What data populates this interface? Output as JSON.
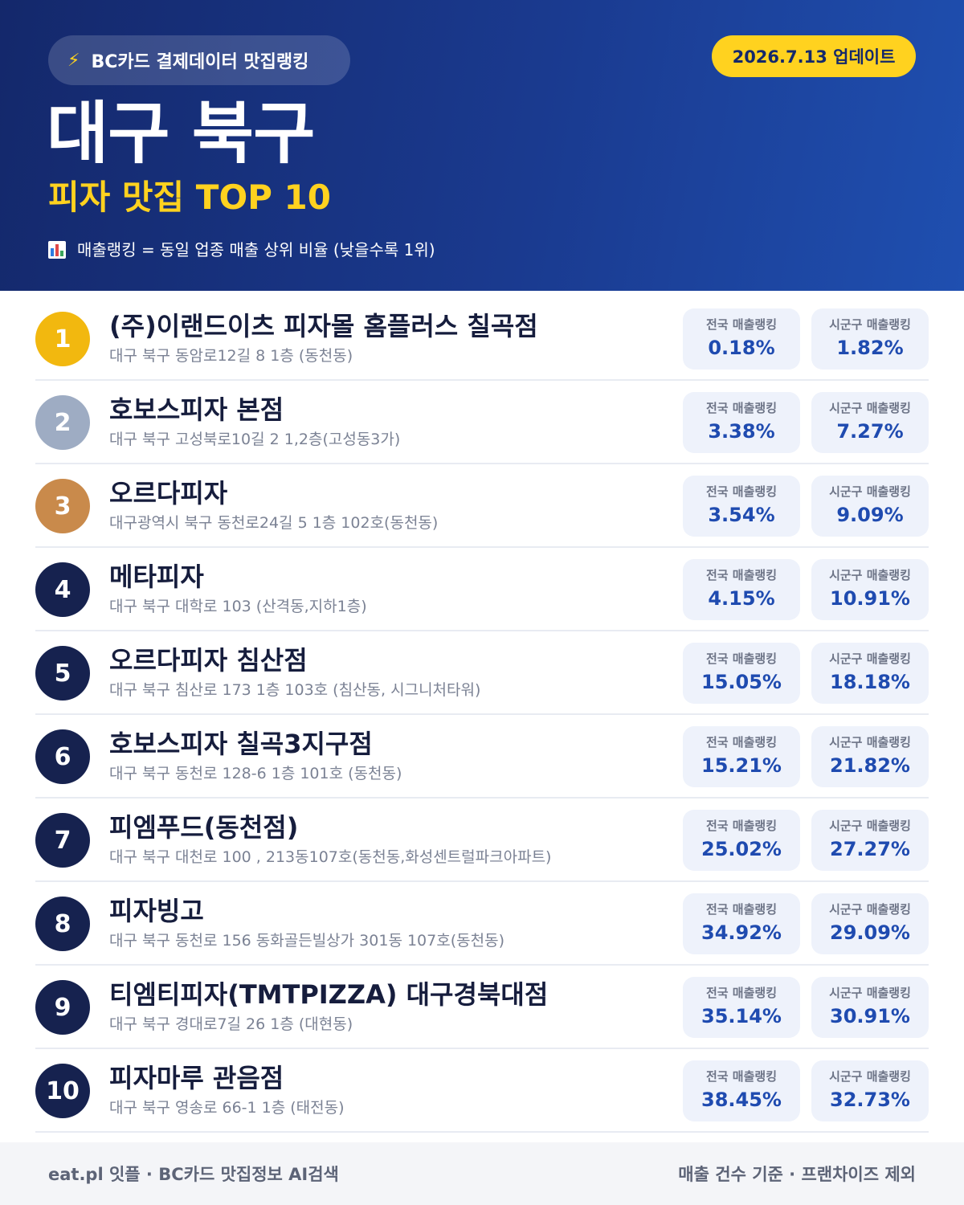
{
  "header": {
    "source_label": "BC카드 결제데이터 맛집랭킹",
    "update_label": "2026.7.13 업데이트",
    "region": "대구 북구",
    "subtitle": "피자 맛집 TOP 10",
    "note": "매출랭킹 = 동일 업종 매출 상위 비율 (낮을수록 1위)",
    "icons": [
      "bolt-icon",
      "bar-chart-icon"
    ]
  },
  "stat_labels": {
    "national": "전국 매출랭킹",
    "local": "시군구 매출랭킹"
  },
  "colors": {
    "gold": "#f2b80f",
    "silver": "#9eacc3",
    "bronze": "#c98a4b",
    "navy": "#16224f",
    "accent": "#ffd21f"
  },
  "restaurants": [
    {
      "rank": "1",
      "name": "(주)이랜드이츠 피자몰 홈플러스 칠곡점",
      "address": "대구 북구 동암로12길 8 1층 (동천동)",
      "national": "0.18%",
      "local": "1.82%"
    },
    {
      "rank": "2",
      "name": "호보스피자 본점",
      "address": "대구 북구 고성북로10길 2 1,2층(고성동3가)",
      "national": "3.38%",
      "local": "7.27%"
    },
    {
      "rank": "3",
      "name": "오르다피자",
      "address": "대구광역시 북구 동천로24길 5 1층 102호(동천동)",
      "national": "3.54%",
      "local": "9.09%"
    },
    {
      "rank": "4",
      "name": "메타피자",
      "address": "대구 북구 대학로 103 (산격동,지하1층)",
      "national": "4.15%",
      "local": "10.91%"
    },
    {
      "rank": "5",
      "name": "오르다피자 침산점",
      "address": "대구 북구 침산로 173 1층 103호 (침산동, 시그니처타워)",
      "national": "15.05%",
      "local": "18.18%"
    },
    {
      "rank": "6",
      "name": "호보스피자 칠곡3지구점",
      "address": "대구 북구 동천로 128-6 1층 101호 (동천동)",
      "national": "15.21%",
      "local": "21.82%"
    },
    {
      "rank": "7",
      "name": "피엠푸드(동천점)",
      "address": "대구 북구 대천로 100 , 213동107호(동천동,화성센트럴파크아파트)",
      "national": "25.02%",
      "local": "27.27%"
    },
    {
      "rank": "8",
      "name": "피자빙고",
      "address": "대구 북구 동천로 156 동화골든빌상가 301동 107호(동천동)",
      "national": "34.92%",
      "local": "29.09%"
    },
    {
      "rank": "9",
      "name": "티엠티피자(TMTPIZZA) 대구경북대점",
      "address": "대구 북구 경대로7길 26 1층 (대현동)",
      "national": "35.14%",
      "local": "30.91%"
    },
    {
      "rank": "10",
      "name": "피자마루 관음점",
      "address": "대구 북구 영송로 66-1 1층 (태전동)",
      "national": "38.45%",
      "local": "32.73%"
    }
  ],
  "footer": {
    "left": "eat.pl 잇플 · BC카드 맛집정보 AI검색",
    "right": "매출 건수 기준 · 프랜차이즈 제외"
  }
}
